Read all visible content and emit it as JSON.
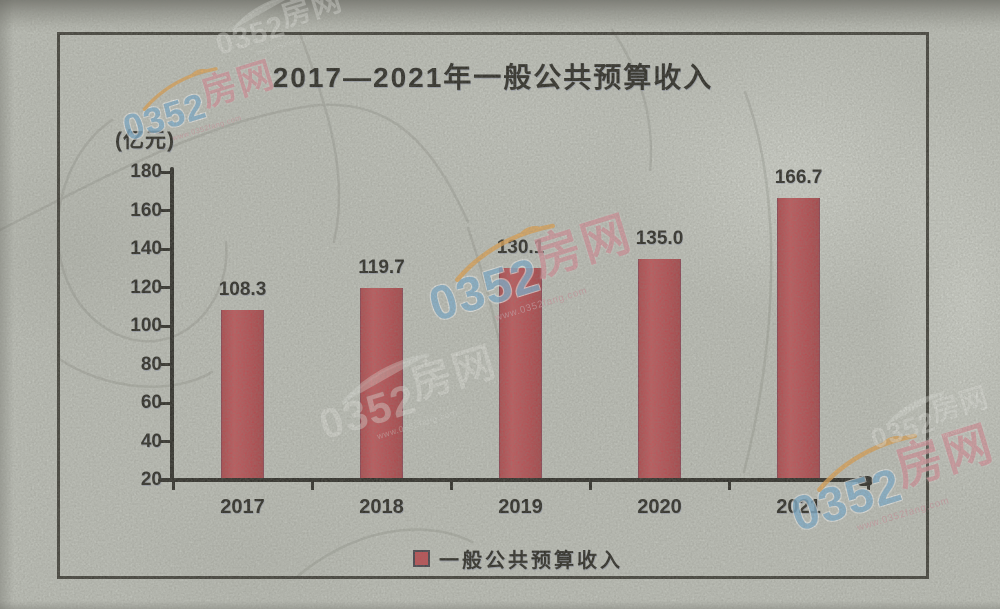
{
  "chart_data": {
    "type": "bar",
    "title": "2017—2021年一般公共预算收入",
    "unit_label": "(亿元)",
    "categories": [
      "2017",
      "2018",
      "2019",
      "2020",
      "2021"
    ],
    "values": [
      108.3,
      119.7,
      130.1,
      135.0,
      166.7
    ],
    "value_labels": [
      "108.3",
      "119.7",
      "130.1",
      "135.0",
      "166.7"
    ],
    "ylim": [
      20,
      180
    ],
    "yticks": [
      20,
      40,
      60,
      80,
      100,
      120,
      140,
      160,
      180
    ],
    "xlabel": "",
    "ylabel": "(亿元)",
    "grid": false,
    "legend_position": "bottom",
    "legend": [
      {
        "label": "一般公共预算收入",
        "color": "#c4494f"
      }
    ],
    "bar_color": "#c4494f"
  },
  "watermark": {
    "number": "0352",
    "name": "房网",
    "url": "www.0352fang.com",
    "colors": {
      "number": "#7db5da",
      "name": "#df96a0",
      "swoosh": "#eca74e"
    }
  },
  "colors": {
    "background": "#c5c8c0",
    "frame_border": "#3b3a33",
    "axis": "#25241f",
    "text": "#23221c",
    "bar": "#c4494f"
  }
}
